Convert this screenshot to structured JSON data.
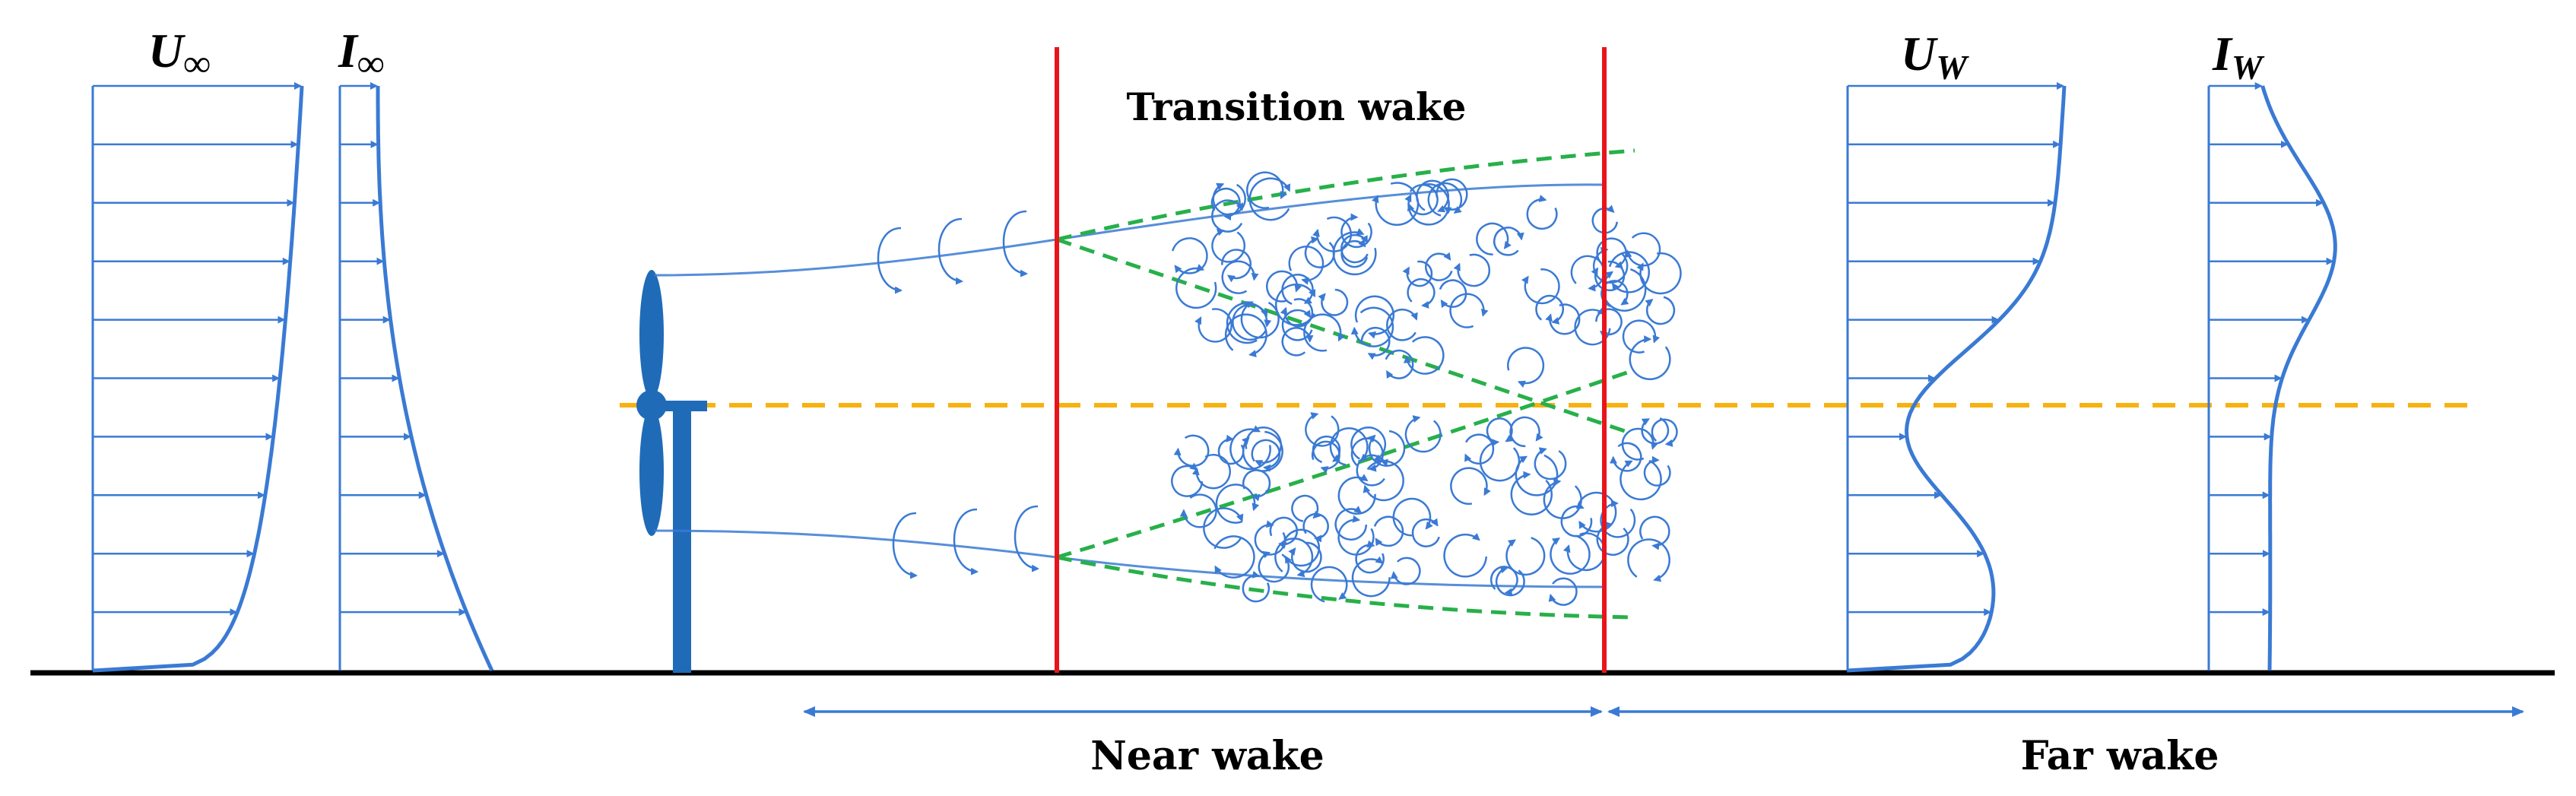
{
  "labels": {
    "inflow_velocity": {
      "symbol": "U",
      "subscript": "∞"
    },
    "inflow_turbulence": {
      "symbol": "I",
      "subscript": "∞"
    },
    "wake_velocity": {
      "symbol": "U",
      "subscript": "W"
    },
    "wake_turbulence": {
      "symbol": "I",
      "subscript": "W"
    },
    "transition_wake": "Transition wake",
    "near_wake": "Near wake",
    "far_wake": "Far wake"
  },
  "colors": {
    "profile_blue": "#3a7ad4",
    "turbine_blue": "#1f6bb8",
    "boundary_red": "#e8141c",
    "shear_green": "#27b04a",
    "hub_axis_orange": "#f7b20f",
    "ground_black": "#000000"
  },
  "icons": {
    "turbine": "wind-turbine-icon",
    "vortex": "vortex-curl-icon"
  }
}
